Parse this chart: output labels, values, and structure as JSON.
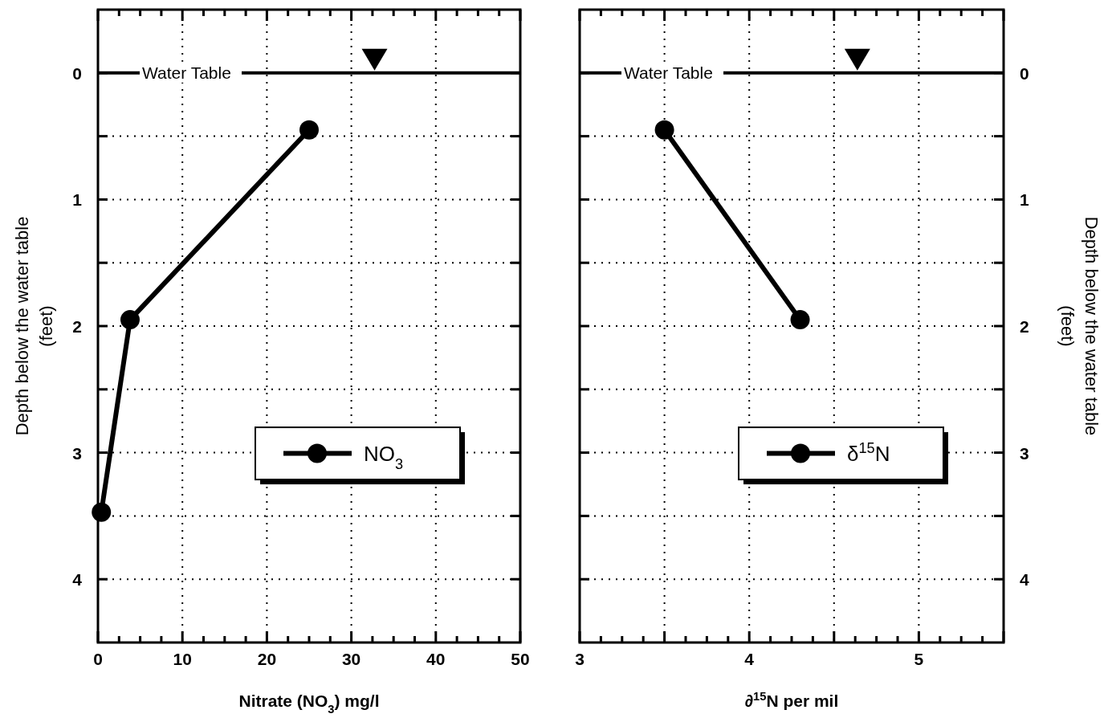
{
  "chart_data": [
    {
      "type": "line",
      "xlabel": "Nitrate (NO$_{3}$) mg/l",
      "ylabel": "Depth below the water table\n(feet)",
      "xlim": [
        0,
        50
      ],
      "xticks": [
        0,
        10,
        20,
        30,
        40,
        50
      ],
      "ylim": [
        4.5,
        -0.5
      ],
      "yticks": [
        0,
        {
          "value": 0.5,
          "label": null
        },
        1,
        {
          "value": 1.5,
          "label": null
        },
        2,
        {
          "value": 2.5,
          "label": null
        },
        3,
        {
          "value": 3.5,
          "label": null
        },
        4
      ],
      "grid": true,
      "legend": "right",
      "marker": "circle",
      "line_style": "solid",
      "ref_lines": [
        {
          "axis": "y",
          "value": 0,
          "label": "Water Table",
          "color": "#000000"
        }
      ],
      "series": [
        {
          "name": "NO$_{3}$",
          "color": "#000000",
          "x": [
            25,
            3.8,
            0.4
          ],
          "values": [
            0.45,
            1.95,
            3.47
          ]
        }
      ]
    },
    {
      "type": "line",
      "xlabel": "∂$^{15}$N per mil",
      "y2label": "Depth below the water table\n(feet)",
      "xlim": [
        3,
        5.5
      ],
      "xticks": [
        3,
        {
          "value": 3.5,
          "label": null
        },
        4,
        {
          "value": 4.5,
          "label": null
        },
        5,
        {
          "value": 5.5,
          "label": null
        }
      ],
      "y2lim": [
        4.5,
        -0.5
      ],
      "y2ticks": [
        0,
        {
          "value": 0.5,
          "label": null
        },
        1,
        {
          "value": 1.5,
          "label": null
        },
        2,
        {
          "value": 2.5,
          "label": null
        },
        3,
        {
          "value": 3.5,
          "label": null
        },
        4
      ],
      "grid": true,
      "legend": "right",
      "marker": "circle",
      "line_style": "solid",
      "ref_lines": [
        {
          "axis": "y2",
          "value": 0,
          "label": "Water Table",
          "color": "#000000"
        }
      ],
      "series": [
        {
          "name": "δ$^{15}$N",
          "color": "#000000",
          "axis": "y2",
          "x": [
            3.5,
            4.3
          ],
          "values": [
            0.45,
            1.95
          ]
        }
      ]
    }
  ]
}
